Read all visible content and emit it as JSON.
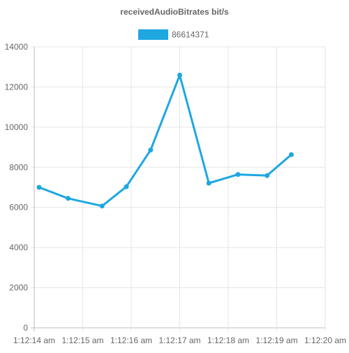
{
  "chart_data": {
    "type": "line",
    "title": "receivedAudioBitrates bit/s",
    "xlabel": "",
    "ylabel": "",
    "ylim": [
      0,
      14000
    ],
    "y_ticks": [
      0,
      2000,
      4000,
      6000,
      8000,
      10000,
      12000,
      14000
    ],
    "x_range": [
      "1:12:14 am",
      "1:12:20 am"
    ],
    "x_ticks": [
      "1:12:14 am",
      "1:12:15 am",
      "1:12:16 am",
      "1:12:17 am",
      "1:12:18 am",
      "1:12:19 am",
      "1:12:20 am"
    ],
    "grid": true,
    "legend": "top",
    "series": [
      {
        "name": "86614371",
        "color": "#1ea7e1",
        "x": [
          "1:12:14.1 am",
          "1:12:14.7 am",
          "1:12:15.4 am",
          "1:12:15.9 am",
          "1:12:16.4 am",
          "1:12:17.0 am",
          "1:12:17.6 am",
          "1:12:18.2 am",
          "1:12:18.8 am",
          "1:12:19.3 am"
        ],
        "values": [
          7000,
          6450,
          6070,
          7030,
          8860,
          12590,
          7210,
          7640,
          7590,
          8630
        ]
      }
    ]
  }
}
